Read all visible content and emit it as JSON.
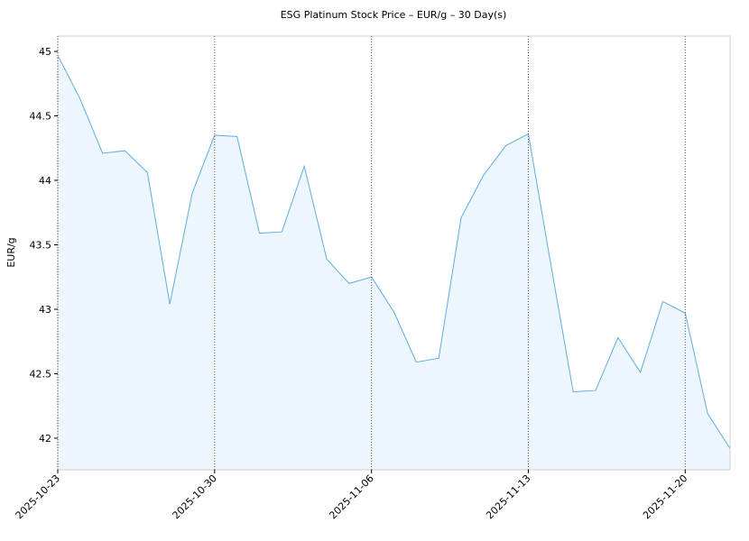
{
  "chart_data": {
    "type": "area",
    "title": "ESG Platinum Stock Price – EUR/g – 30 Day(s)",
    "y_label": "EUR/g",
    "x": [
      "2025-10-23",
      "2025-10-24",
      "2025-10-25",
      "2025-10-26",
      "2025-10-27",
      "2025-10-28",
      "2025-10-29",
      "2025-10-30",
      "2025-10-31",
      "2025-11-01",
      "2025-11-02",
      "2025-11-03",
      "2025-11-04",
      "2025-11-05",
      "2025-11-06",
      "2025-11-07",
      "2025-11-08",
      "2025-11-09",
      "2025-11-10",
      "2025-11-11",
      "2025-11-12",
      "2025-11-13",
      "2025-11-14",
      "2025-11-15",
      "2025-11-16",
      "2025-11-17",
      "2025-11-18",
      "2025-11-19",
      "2025-11-20",
      "2025-11-21",
      "2025-11-22"
    ],
    "values": [
      44.97,
      44.63,
      44.21,
      44.23,
      44.06,
      43.04,
      43.9,
      44.35,
      44.34,
      43.59,
      43.6,
      44.11,
      43.39,
      43.2,
      43.25,
      42.98,
      42.59,
      42.62,
      43.71,
      44.04,
      44.27,
      44.36,
      43.35,
      42.36,
      42.37,
      42.78,
      42.51,
      43.06,
      42.97,
      42.19,
      41.92
    ],
    "color": "#5dade2",
    "fill_color": "#eef6fd",
    "xlim": [
      "2025-10-23",
      "2025-11-22"
    ],
    "xticks": [
      "2025-10-23",
      "2025-10-30",
      "2025-11-06",
      "2025-11-13",
      "2025-11-20"
    ],
    "ylim": [
      41.755,
      45.119
    ],
    "yticks": [
      42,
      42.5,
      43,
      43.5,
      44,
      44.5,
      45
    ],
    "x_grid": true
  }
}
